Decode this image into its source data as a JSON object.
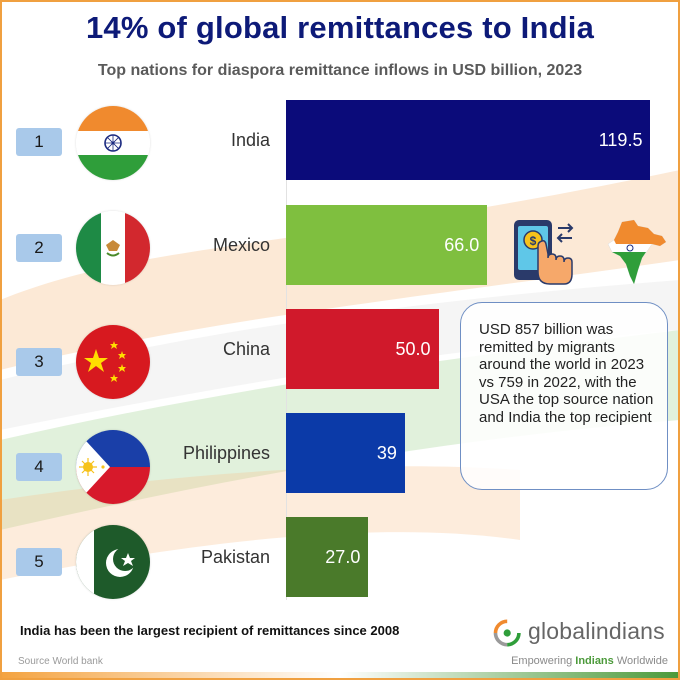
{
  "title": "14% of global remittances to India",
  "subtitle": "Top nations for diaspora remittance inflows in USD billion, 2023",
  "chart_data": {
    "type": "bar",
    "orientation": "horizontal",
    "categories": [
      "India",
      "Mexico",
      "China",
      "Philippines",
      "Pakistan"
    ],
    "ranks": [
      "1",
      "2",
      "3",
      "4",
      "5"
    ],
    "values": [
      119.5,
      66.0,
      50.0,
      39,
      27.0
    ],
    "value_labels": [
      "119.5",
      "66.0",
      "50.0",
      "39",
      "27.0"
    ],
    "bar_colors": [
      "#0b0b7a",
      "#7fbf3f",
      "#d0192b",
      "#0b3aa8",
      "#4a7a2a"
    ],
    "xlim": [
      0,
      120
    ],
    "title": "14% of global remittances to India",
    "subtitle": "Top nations for diaspora remittance inflows in USD billion, 2023",
    "xlabel": "",
    "ylabel": ""
  },
  "callout": "USD 857 billion was remitted by migrants around the world in 2023 vs 759 in 2022, with the USA the top source nation and India the top recipient",
  "footnote": "India has been the largest recipient of remittances since 2008",
  "source": "Source World bank",
  "brand": {
    "logo_text": "globalindians",
    "tagline_pre": "Empowering ",
    "tagline_highlight": "Indians",
    "tagline_post": " Worldwide"
  },
  "icons": [
    "mobile-payment-icon",
    "india-map-flag-icon"
  ],
  "colors": {
    "title": "#0d1a78",
    "rank_box": "#a9c9ea",
    "callout_border": "#6f8fc4",
    "saffron": "#f4a340",
    "green": "#4c9a3b"
  }
}
